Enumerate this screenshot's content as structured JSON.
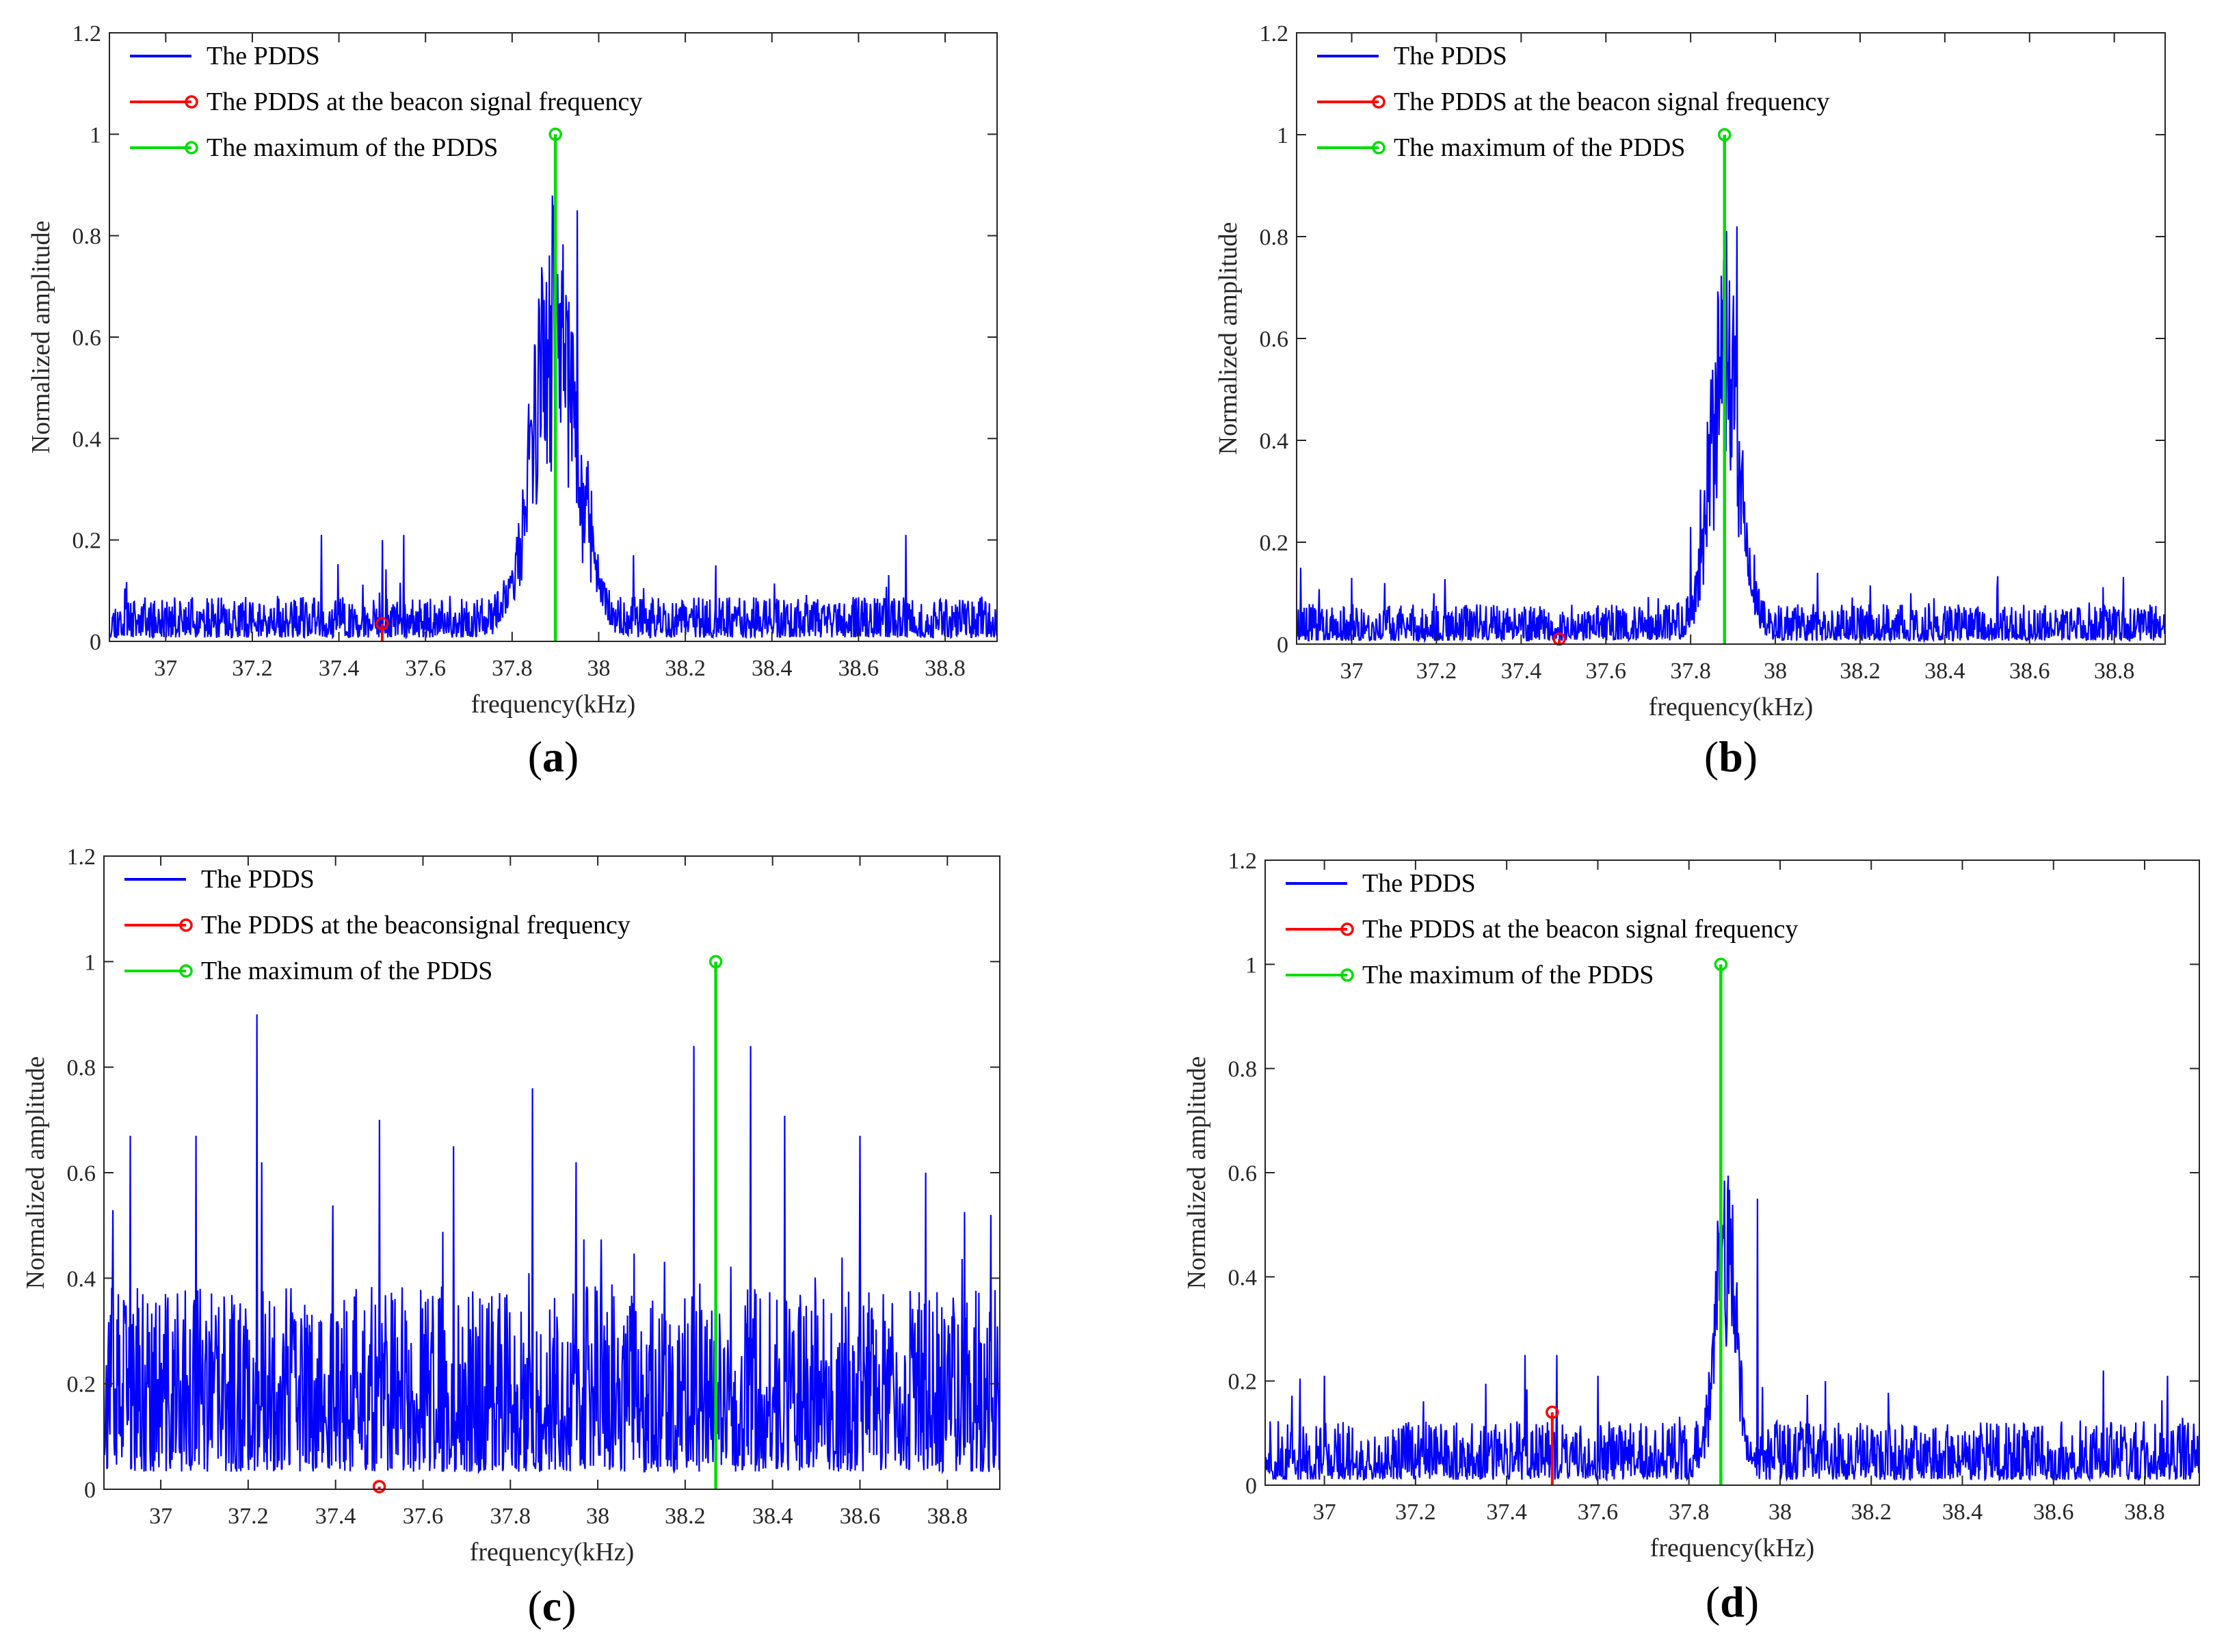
{
  "chart_data": [
    {
      "type": "line",
      "panel": "a",
      "caption_letter": "a",
      "xlabel": "frequency(kHz)",
      "ylabel": "Normalized amplitude",
      "xlim": [
        36.87,
        38.92
      ],
      "ylim": [
        0,
        1.2
      ],
      "xticks": [
        "37",
        "37.2",
        "37.4",
        "37.6",
        "37.8",
        "38",
        "38.2",
        "38.4",
        "38.6",
        "38.8"
      ],
      "yticks": [
        "0",
        "0.2",
        "0.4",
        "0.6",
        "0.8",
        "1",
        "1.2"
      ],
      "legend": [
        "The PDDS",
        "The PDDS at the beacon signal frequency",
        "The maximum of the PDDS"
      ],
      "legend_position": "top-left",
      "colors": {
        "pdds": "#0000ff",
        "beacon": "#ff0000",
        "maximum": "#00dd00"
      },
      "beacon": {
        "x": 37.5,
        "y": 0.035
      },
      "maximum": {
        "x": 37.9,
        "y": 1.0
      },
      "noise_level": 0.05,
      "peak": {
        "center": 37.9,
        "width": 0.09,
        "height": 0.85
      },
      "spikes": [
        [
          37.95,
          0.85
        ],
        [
          38.08,
          0.17
        ],
        [
          38.27,
          0.15
        ],
        [
          38.71,
          0.21
        ],
        [
          37.5,
          0.2
        ],
        [
          37.36,
          0.21
        ],
        [
          37.55,
          0.21
        ]
      ]
    },
    {
      "type": "line",
      "panel": "b",
      "caption_letter": "b",
      "xlabel": "frequency(kHz)",
      "ylabel": "Normalized amplitude",
      "xlim": [
        36.87,
        38.92
      ],
      "ylim": [
        0,
        1.2
      ],
      "xticks": [
        "37",
        "37.2",
        "37.4",
        "37.6",
        "37.8",
        "38",
        "38.2",
        "38.4",
        "38.6",
        "38.8"
      ],
      "yticks": [
        "0",
        "0.2",
        "0.4",
        "0.6",
        "0.8",
        "1",
        "1.2"
      ],
      "legend": [
        "The PDDS",
        "The PDDS at the beacon signal frequency",
        "The maximum of the PDDS"
      ],
      "legend_position": "top-left",
      "colors": {
        "pdds": "#0000ff",
        "beacon": "#ff0000",
        "maximum": "#00dd00"
      },
      "beacon": {
        "x": 37.49,
        "y": 0.01
      },
      "maximum": {
        "x": 37.88,
        "y": 1.0
      },
      "noise_level": 0.045,
      "peak": {
        "center": 37.88,
        "width": 0.06,
        "height": 0.78
      },
      "spikes": [
        [
          37.91,
          0.82
        ],
        [
          37.8,
          0.23
        ],
        [
          36.88,
          0.15
        ],
        [
          37.0,
          0.13
        ],
        [
          38.1,
          0.14
        ],
        [
          38.32,
          0.1
        ]
      ]
    },
    {
      "type": "line",
      "panel": "c",
      "caption_letter": "c",
      "xlabel": "frequency(kHz)",
      "ylabel": "Normalized amplitude",
      "xlim": [
        36.87,
        38.92
      ],
      "ylim": [
        0,
        1.2
      ],
      "xticks": [
        "37",
        "37.2",
        "37.4",
        "37.6",
        "37.8",
        "38",
        "38.2",
        "38.4",
        "38.6",
        "38.8"
      ],
      "yticks": [
        "0",
        "0.2",
        "0.4",
        "0.6",
        "0.8",
        "1",
        "1.2"
      ],
      "legend": [
        "The PDDS",
        "The PDDS at the beaconsignal frequency",
        "The maximum of the PDDS"
      ],
      "legend_position": "top-left",
      "colors": {
        "pdds": "#0000ff",
        "beacon": "#ff0000",
        "maximum": "#00dd00"
      },
      "beacon": {
        "x": 37.5,
        "y": 0.005
      },
      "maximum": {
        "x": 38.27,
        "y": 1.0
      },
      "noise_level": 0.22,
      "peak": null,
      "spikes": [
        [
          37.22,
          0.9
        ],
        [
          38.35,
          0.84
        ],
        [
          38.22,
          0.84
        ],
        [
          37.85,
          0.76
        ],
        [
          36.93,
          0.67
        ],
        [
          37.08,
          0.67
        ],
        [
          37.5,
          0.7
        ],
        [
          37.67,
          0.65
        ],
        [
          37.95,
          0.62
        ],
        [
          38.6,
          0.67
        ],
        [
          38.75,
          0.6
        ],
        [
          38.9,
          0.52
        ]
      ]
    },
    {
      "type": "line",
      "panel": "d",
      "caption_letter": "d",
      "xlabel": "frequency(kHz)",
      "ylabel": "Normalized amplitude",
      "xlim": [
        36.87,
        38.92
      ],
      "ylim": [
        0,
        1.2
      ],
      "xticks": [
        "37",
        "37.2",
        "37.4",
        "37.6",
        "37.8",
        "38",
        "38.2",
        "38.4",
        "38.6",
        "38.8"
      ],
      "yticks": [
        "0",
        "0.2",
        "0.4",
        "0.6",
        "0.8",
        "1",
        "1.2"
      ],
      "legend": [
        "The PDDS",
        "The PDDS at the beacon signal frequency",
        "The maximum of the PDDS"
      ],
      "legend_position": "top-left",
      "colors": {
        "pdds": "#0000ff",
        "beacon": "#ff0000",
        "maximum": "#00dd00"
      },
      "beacon": {
        "x": 37.5,
        "y": 0.14
      },
      "maximum": {
        "x": 37.87,
        "y": 1.0
      },
      "noise_level": 0.07,
      "peak": {
        "center": 37.88,
        "width": 0.04,
        "height": 0.6
      },
      "spikes": [
        [
          37.95,
          0.55
        ],
        [
          37.44,
          0.25
        ],
        [
          37.51,
          0.25
        ],
        [
          37.0,
          0.21
        ],
        [
          38.71,
          0.22
        ],
        [
          38.85,
          0.21
        ],
        [
          38.1,
          0.2
        ],
        [
          37.6,
          0.21
        ]
      ]
    }
  ]
}
